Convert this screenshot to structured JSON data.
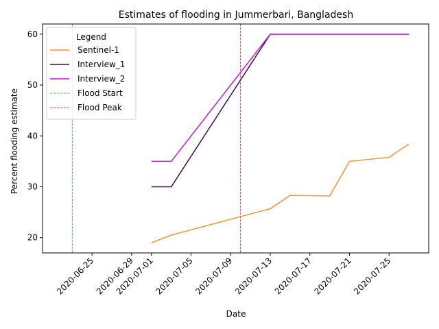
{
  "chart_data": {
    "type": "line",
    "title": "Estimates of flooding in Jummerbari, Bangladesh",
    "xlabel": "Date",
    "ylabel": "Percent flooding estimate",
    "xlim": [
      "2020-06-20",
      "2020-07-29"
    ],
    "ylim": [
      17,
      62
    ],
    "x_ticks": [
      "2020-06-25",
      "2020-06-29",
      "2020-07-01",
      "2020-07-05",
      "2020-07-09",
      "2020-07-13",
      "2020-07-17",
      "2020-07-21",
      "2020-07-25"
    ],
    "y_ticks": [
      20,
      30,
      40,
      50,
      60
    ],
    "grid": false,
    "legend": {
      "title": "Legend",
      "placement": "top-left"
    },
    "series": [
      {
        "name": "Sentinel-1",
        "color": "#f7922b",
        "style": "solid",
        "points": [
          [
            "2020-07-01",
            19.0
          ],
          [
            "2020-07-03",
            20.5
          ],
          [
            "2020-07-13",
            25.7
          ],
          [
            "2020-07-15",
            28.3
          ],
          [
            "2020-07-19",
            28.2
          ],
          [
            "2020-07-21",
            35.0
          ],
          [
            "2020-07-25",
            35.8
          ],
          [
            "2020-07-27",
            38.4
          ]
        ]
      },
      {
        "name": "Interview_1",
        "color": "#3b0a4f",
        "style": "solid",
        "points": [
          [
            "2020-07-01",
            30.0
          ],
          [
            "2020-07-03",
            30.0
          ],
          [
            "2020-07-13",
            60.0
          ],
          [
            "2020-07-27",
            60.0
          ]
        ]
      },
      {
        "name": "Interview_2",
        "color": "#cc11dd",
        "style": "solid",
        "points": [
          [
            "2020-07-01",
            35.0
          ],
          [
            "2020-07-03",
            35.0
          ],
          [
            "2020-07-13",
            60.0
          ],
          [
            "2020-07-27",
            60.0
          ]
        ]
      }
    ],
    "vlines": [
      {
        "name": "Flood Start",
        "date": "2020-06-23",
        "color": "#2ca02c",
        "style": "dashed"
      },
      {
        "name": "Flood Peak",
        "date": "2020-07-10",
        "color": "#c0143c",
        "style": "dashed"
      }
    ]
  }
}
